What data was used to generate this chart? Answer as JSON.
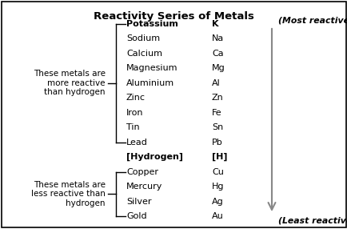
{
  "title": "Reactivity Series of Metals",
  "metals": [
    {
      "name": "Potassium",
      "symbol": "K",
      "bold": true
    },
    {
      "name": "Sodium",
      "symbol": "Na",
      "bold": false
    },
    {
      "name": "Calcium",
      "symbol": "Ca",
      "bold": false
    },
    {
      "name": "Magnesium",
      "symbol": "Mg",
      "bold": false
    },
    {
      "name": "Aluminium",
      "symbol": "Al",
      "bold": false
    },
    {
      "name": "Zinc",
      "symbol": "Zn",
      "bold": false
    },
    {
      "name": "Iron",
      "symbol": "Fe",
      "bold": false
    },
    {
      "name": "Tin",
      "symbol": "Sn",
      "bold": false
    },
    {
      "name": "Lead",
      "symbol": "Pb",
      "bold": false
    },
    {
      "name": "[Hydrogen]",
      "symbol": "[H]",
      "bold": true
    },
    {
      "name": "Copper",
      "symbol": "Cu",
      "bold": false
    },
    {
      "name": "Mercury",
      "symbol": "Hg",
      "bold": false
    },
    {
      "name": "Silver",
      "symbol": "Ag",
      "bold": false
    },
    {
      "name": "Gold",
      "symbol": "Au",
      "bold": false
    }
  ],
  "label_top": "(Most reactive metal)",
  "label_bottom": "(Least reactive metal)",
  "bracket_above_text": "These metals are\nmore reactive\nthan hydrogen",
  "bracket_below_text": "These metals are\nless reactive than\nhydrogen",
  "bg_color": "#ffffff",
  "text_color": "#000000",
  "border_color": "#000000",
  "title_fontsize": 9.5,
  "metal_fontsize": 8.0,
  "label_fontsize": 7.8,
  "side_text_fontsize": 7.5,
  "arrow_color": "#888888"
}
